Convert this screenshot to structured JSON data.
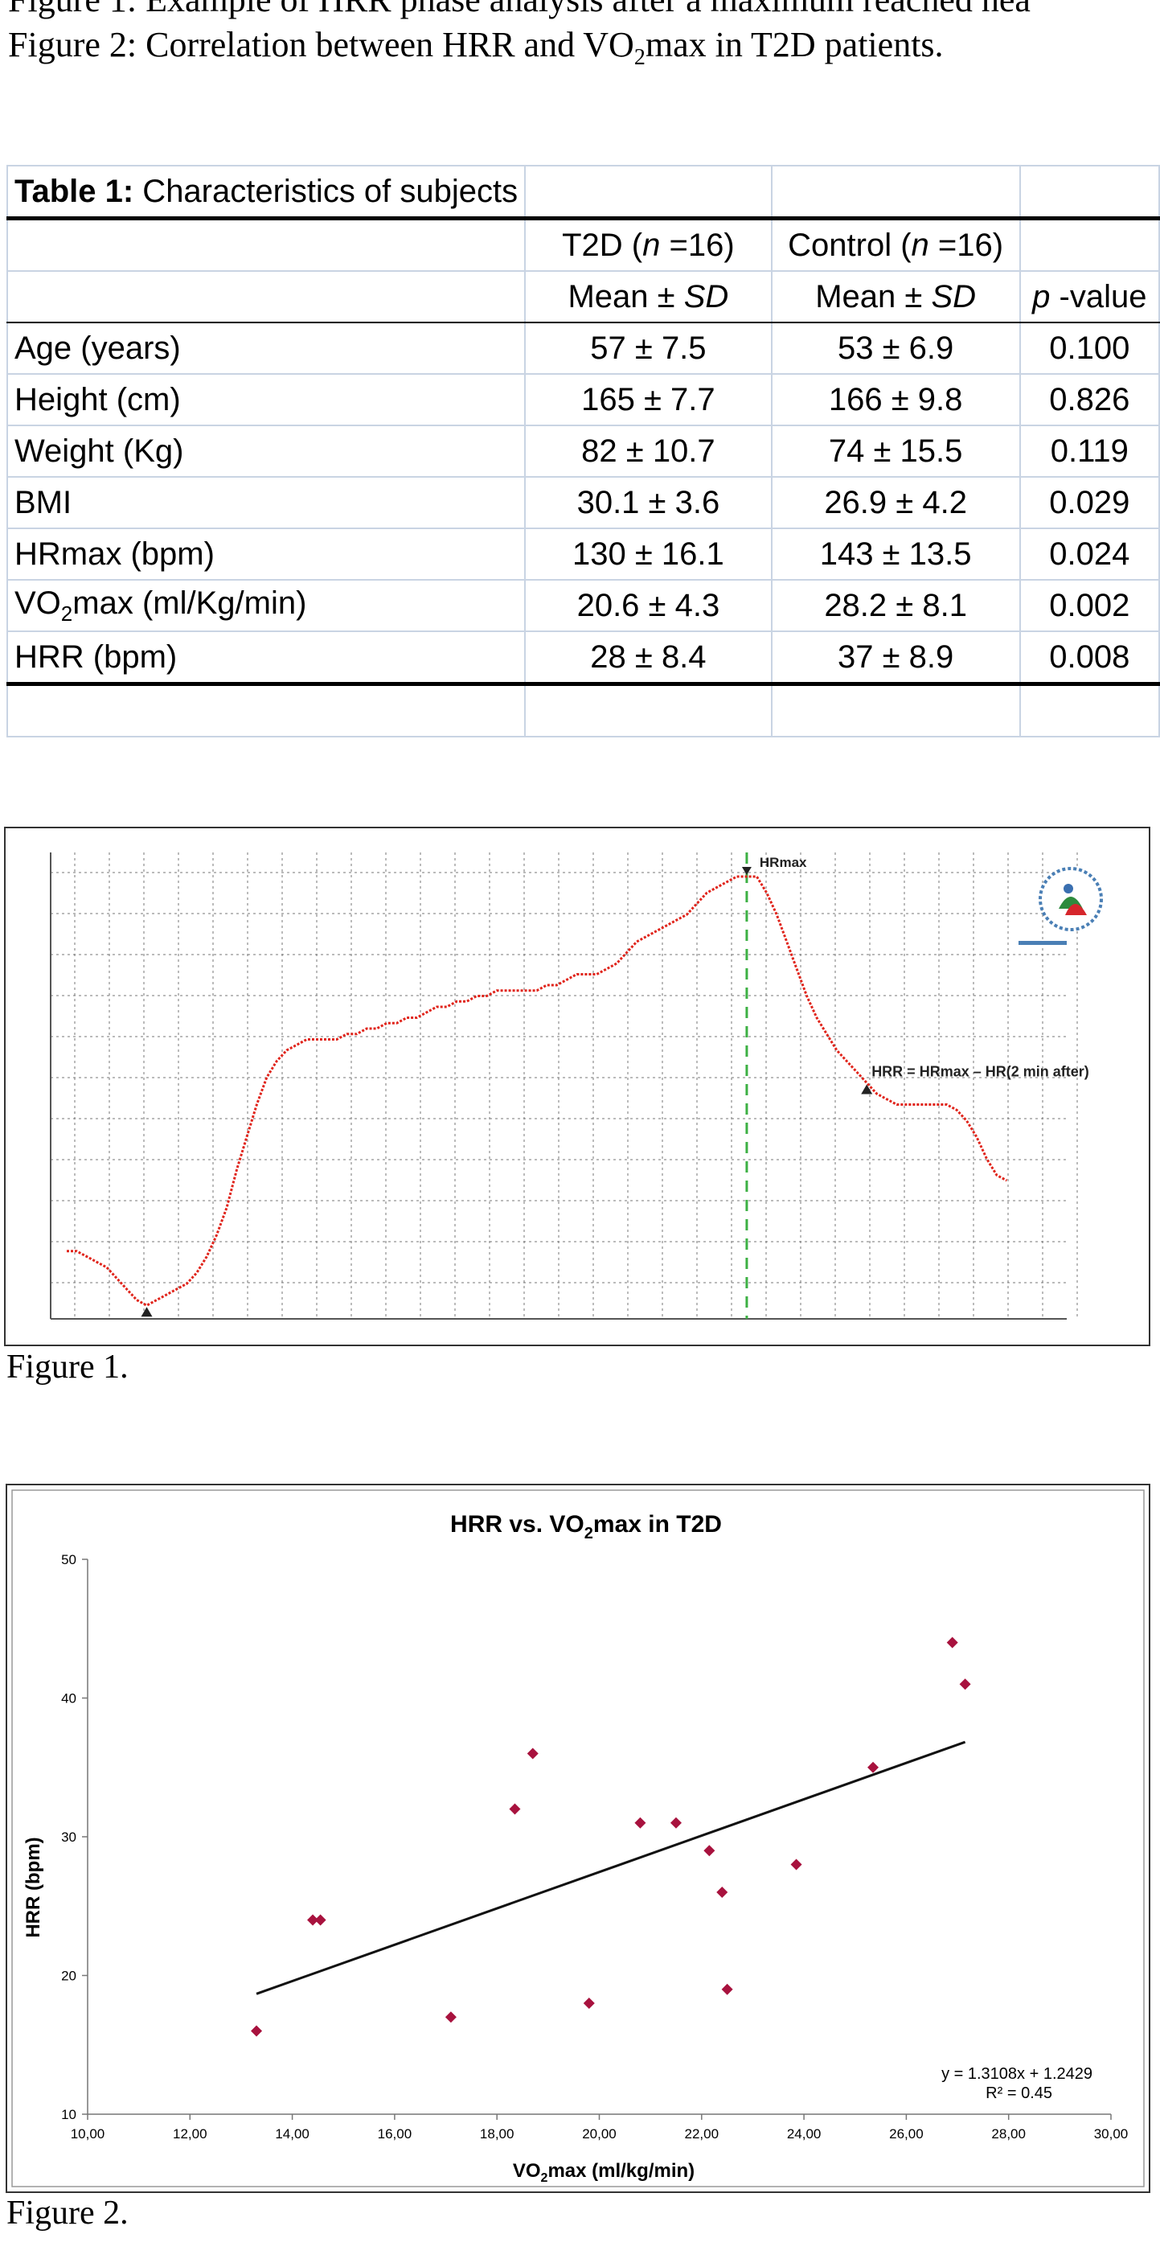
{
  "captions": {
    "line1": "Figure 1: Example of HRR phase analysis after a maximum reached hea",
    "line2_pre": "Figure 2: Correlation between HRR and VO",
    "line2_sub": "2",
    "line2_post": "max in T2D patients."
  },
  "table": {
    "title_bold": "Table 1:",
    "title_rest": " Characteristics of subjects",
    "group_headers": [
      "T2D (",
      "n",
      " =16)",
      "Control (",
      "n",
      " =16)"
    ],
    "stat_header": [
      "Mean ± ",
      "SD"
    ],
    "p_header": [
      "p",
      " -value"
    ],
    "rows": [
      {
        "label": "Age (years)",
        "t2d": "57 ± 7.5",
        "control": "53 ± 6.9",
        "p": "0.100"
      },
      {
        "label": "Height (cm)",
        "t2d": "165 ± 7.7",
        "control": "166 ± 9.8",
        "p": "0.826"
      },
      {
        "label": "Weight (Kg)",
        "t2d": "82 ± 10.7",
        "control": "74 ± 15.5",
        "p": "0.119"
      },
      {
        "label": "BMI",
        "t2d": "30.1 ± 3.6",
        "control": "26.9 ± 4.2",
        "p": "0.029"
      },
      {
        "label": "HRmax (bpm)",
        "t2d": "130 ± 16.1",
        "control": "143 ± 13.5",
        "p": "0.024"
      },
      {
        "label_pre": "VO",
        "label_sub": "2",
        "label_post": "max (ml/Kg/min)",
        "t2d": "20.6 ± 4.3",
        "control": "28.2 ± 8.1",
        "p": "0.002"
      },
      {
        "label": "HRR (bpm)",
        "t2d": "28 ± 8.4",
        "control": "37 ± 8.9",
        "p": "0.008"
      }
    ]
  },
  "figure1": {
    "caption": "Figure 1.",
    "annotation_hrmax": "HRmax",
    "annotation_hrr": "HRR = HRmax – HR(2 min after)",
    "line_color": "#e0241b",
    "marker_color": "#3cb043",
    "logo": "club-logo-icon",
    "chart_data": {
      "type": "line",
      "series": [
        {
          "values": [
            71,
            71,
            70,
            69,
            68,
            66,
            64,
            62,
            61,
            62,
            63,
            64,
            65,
            67,
            70,
            74,
            79,
            86,
            92,
            98,
            103,
            106,
            108,
            109,
            110,
            110,
            110,
            110,
            111,
            111,
            112,
            112,
            113,
            113,
            114,
            114,
            115,
            116,
            116,
            117,
            117,
            118,
            118,
            119,
            119,
            119,
            119,
            119,
            120,
            120,
            121,
            122,
            122,
            122,
            123,
            124,
            126,
            128,
            129,
            130,
            131,
            132,
            133,
            135,
            137,
            138,
            139,
            140,
            140,
            140,
            137,
            133,
            128,
            123,
            118,
            114,
            111,
            108,
            106,
            104,
            102,
            100,
            99,
            98,
            98,
            98,
            98,
            98,
            98,
            97,
            95,
            92,
            88,
            85,
            84
          ]
        }
      ],
      "ylim": [
        60,
        140
      ]
    }
  },
  "figure2": {
    "caption": "Figure 2.",
    "chart_data": {
      "type": "scatter",
      "title_pre": "HRR vs. VO",
      "title_sub": "2",
      "title_post": "max in T2D",
      "xlabel_pre": "VO",
      "xlabel_sub": "2",
      "xlabel_post": "max (ml/kg/min)",
      "ylabel": "HRR (bpm)",
      "xlim": [
        10,
        30
      ],
      "ylim": [
        10,
        50
      ],
      "x_ticks": [
        "10,00",
        "12,00",
        "14,00",
        "16,00",
        "18,00",
        "20,00",
        "22,00",
        "24,00",
        "26,00",
        "28,00",
        "30,00"
      ],
      "y_ticks": [
        "10",
        "20",
        "30",
        "40",
        "50"
      ],
      "points": [
        {
          "x": 13.3,
          "y": 16
        },
        {
          "x": 14.4,
          "y": 24
        },
        {
          "x": 14.55,
          "y": 24
        },
        {
          "x": 17.1,
          "y": 17
        },
        {
          "x": 18.35,
          "y": 32
        },
        {
          "x": 18.7,
          "y": 36
        },
        {
          "x": 19.8,
          "y": 18
        },
        {
          "x": 20.8,
          "y": 31
        },
        {
          "x": 21.5,
          "y": 31
        },
        {
          "x": 22.15,
          "y": 29
        },
        {
          "x": 22.4,
          "y": 26
        },
        {
          "x": 22.5,
          "y": 19
        },
        {
          "x": 23.85,
          "y": 28
        },
        {
          "x": 25.35,
          "y": 35
        },
        {
          "x": 26.9,
          "y": 44
        },
        {
          "x": 27.15,
          "y": 41
        }
      ],
      "trendline": {
        "slope": 1.3108,
        "intercept": 1.2429,
        "x_range": [
          13.3,
          27.15
        ]
      },
      "equation": "y = 1.3108x + 1.2429",
      "r2": "R² = 0.45",
      "point_color": "#a8123e"
    }
  }
}
